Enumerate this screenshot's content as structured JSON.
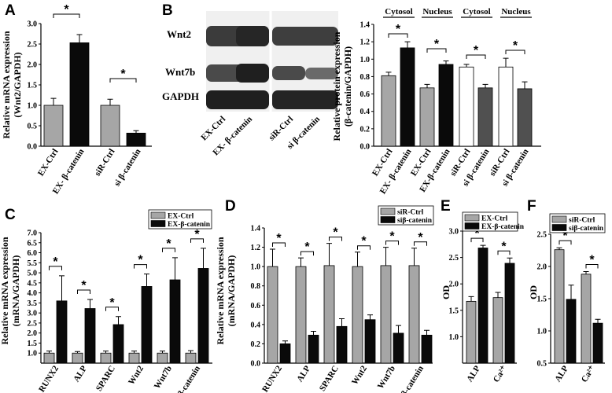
{
  "colors": {
    "gray": "#a6a6a6",
    "black": "#0a0a0a",
    "white": "#ffffff",
    "darkgray": "#505050"
  },
  "chart_data": [
    {
      "id": "A",
      "panel_label": "A",
      "type": "bar",
      "categories": [
        "EX-Ctrl",
        "EX- β-catenin",
        "siR-Ctrl",
        "si β-catenin"
      ],
      "values": [
        1.0,
        2.53,
        1.0,
        0.32
      ],
      "errors": [
        0.17,
        0.2,
        0.15,
        0.06
      ],
      "bar_colors": [
        "gray",
        "black",
        "gray",
        "black"
      ],
      "ylabel_lines": [
        "Relative mRNA expression",
        "(Wnt2/GAPDH)"
      ],
      "ylim": [
        0,
        3.0
      ],
      "yticks": [
        "0.0",
        "0.5",
        "1.0",
        "1.5",
        "2.0",
        "2.5",
        "3.0"
      ],
      "significance": [
        {
          "from": 0,
          "to": 1,
          "label": "*"
        },
        {
          "from": 2,
          "to": 3,
          "label": "*"
        }
      ]
    },
    {
      "id": "B",
      "panel_label": "B",
      "type": "bar",
      "categories": [
        "EX-Ctrl",
        "EX- β-catenin",
        "EX-Ctrl",
        "EX-β-catenin",
        "siR-Ctrl",
        "si β-catenin",
        "siR-Ctrl",
        "si β-catenin"
      ],
      "values": [
        0.81,
        1.13,
        0.67,
        0.94,
        0.91,
        0.67,
        0.91,
        0.66
      ],
      "errors": [
        0.04,
        0.07,
        0.04,
        0.04,
        0.03,
        0.04,
        0.1,
        0.08
      ],
      "bar_colors": [
        "gray",
        "black",
        "gray",
        "black",
        "white",
        "darkgray",
        "white",
        "darkgray"
      ],
      "ylabel_lines": [
        "Relative protein expression",
        "(β-catenin/GAPDH)"
      ],
      "ylim": [
        0,
        1.4
      ],
      "yticks": [
        "0.0",
        "0.2",
        "0.4",
        "0.6",
        "0.8",
        "1.0",
        "1.2",
        "1.4"
      ],
      "group_labels": [
        "Cytosol",
        "Nucleus",
        "Cytosol",
        "Nucleus"
      ],
      "significance": [
        {
          "from": 0,
          "to": 1,
          "label": "*"
        },
        {
          "from": 2,
          "to": 3,
          "label": "*"
        },
        {
          "from": 4,
          "to": 5,
          "label": "*"
        },
        {
          "from": 6,
          "to": 7,
          "label": "*"
        }
      ]
    },
    {
      "id": "C",
      "panel_label": "C",
      "type": "bar",
      "categories": [
        "RUNX2",
        "ALP",
        "SPARC",
        "Wnt2",
        "Wnt7b",
        "β-catenin"
      ],
      "series": [
        {
          "name": "EX-Ctrl",
          "color": "gray",
          "values": [
            1.0,
            1.0,
            1.0,
            1.0,
            1.0,
            1.0
          ],
          "errors": [
            0.1,
            0.08,
            0.1,
            0.1,
            0.1,
            0.12
          ]
        },
        {
          "name": "EX-β-catenin",
          "color": "black",
          "values": [
            3.6,
            3.22,
            2.42,
            4.32,
            4.65,
            5.22
          ],
          "errors": [
            1.25,
            0.45,
            0.4,
            0.62,
            1.1,
            1.0
          ]
        }
      ],
      "ylabel_lines": [
        "Relative mRNA expression",
        "(mRNA/GAPDH)"
      ],
      "ylim": [
        0.5,
        7.0
      ],
      "yticks": [
        "1.0",
        "1.5",
        "2.0",
        "2.5",
        "3.0",
        "3.5",
        "4.0",
        "4.5",
        "5.0",
        "5.5",
        "6.0",
        "6.5",
        "7.0"
      ],
      "legend_position": "top-right",
      "significance_label": "*"
    },
    {
      "id": "D",
      "panel_label": "D",
      "type": "bar",
      "categories": [
        "RUNX2",
        "ALP",
        "SPARC",
        "Wnt2",
        "Wnt7b",
        "β-catenin"
      ],
      "series": [
        {
          "name": "siR-Ctrl",
          "color": "gray",
          "values": [
            1.0,
            1.0,
            1.01,
            1.0,
            1.01,
            1.01
          ],
          "errors": [
            0.18,
            0.09,
            0.23,
            0.15,
            0.19,
            0.18
          ]
        },
        {
          "name": "siβ-catenin",
          "color": "black",
          "values": [
            0.2,
            0.29,
            0.38,
            0.45,
            0.31,
            0.29
          ],
          "errors": [
            0.03,
            0.04,
            0.08,
            0.05,
            0.08,
            0.05
          ]
        }
      ],
      "ylabel_lines": [
        "Relative mRNA expression",
        "(mRNA/GAPDH)"
      ],
      "ylim": [
        0,
        1.4
      ],
      "yticks": [
        "0.0",
        "0.2",
        "0.4",
        "0.6",
        "0.8",
        "1.0",
        "1.2",
        "1.4"
      ],
      "legend_position": "top-right",
      "significance_label": "*"
    },
    {
      "id": "E",
      "panel_label": "E",
      "type": "bar",
      "categories": [
        "ALP",
        "Ca²⁺"
      ],
      "series": [
        {
          "name": "EX-Ctrl",
          "color": "gray",
          "values": [
            1.67,
            1.74
          ],
          "errors": [
            0.09,
            0.1
          ]
        },
        {
          "name": "EX-β-catenin",
          "color": "black",
          "values": [
            2.68,
            2.39
          ],
          "errors": [
            0.05,
            0.1
          ]
        }
      ],
      "ylabel_lines": [
        "OD"
      ],
      "ylim": [
        0.5,
        3.0
      ],
      "yticks": [
        "1.0",
        "1.5",
        "2.0",
        "2.5",
        "3.0"
      ],
      "legend_position": "top",
      "significance_label": "*"
    },
    {
      "id": "F",
      "panel_label": "F",
      "type": "bar",
      "categories": [
        "ALP",
        "Ca²⁺"
      ],
      "series": [
        {
          "name": "siR-Ctrl",
          "color": "gray",
          "values": [
            2.26,
            1.88
          ],
          "errors": [
            0.03,
            0.04
          ]
        },
        {
          "name": "siβ-catenin",
          "color": "black",
          "values": [
            1.49,
            1.12
          ],
          "errors": [
            0.22,
            0.06
          ]
        }
      ],
      "ylabel_lines": [
        "OD"
      ],
      "ylim": [
        0.5,
        2.5
      ],
      "yticks": [
        "0.5",
        "1.0",
        "1.5",
        "2.0",
        "2.5"
      ],
      "legend_position": "top",
      "significance_label": "*"
    }
  ],
  "blot": {
    "row_labels": [
      "Wnt2",
      "Wnt7b",
      "GAPDH"
    ],
    "lane_labels": [
      "EX-Ctrl",
      "EX- β-catenin",
      "siR-Ctrl",
      "si β-catenin"
    ]
  }
}
